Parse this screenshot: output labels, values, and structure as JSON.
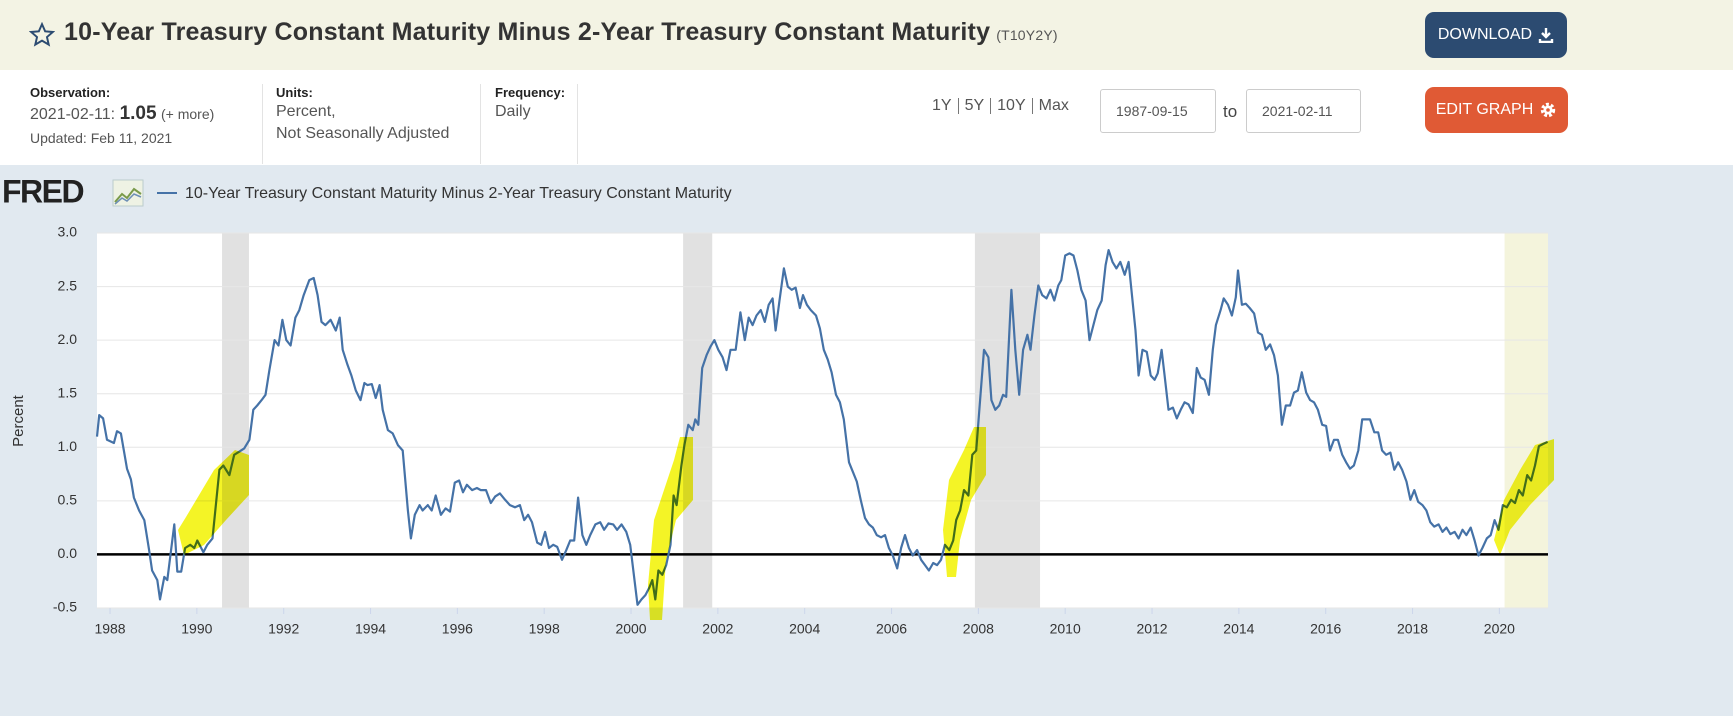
{
  "header": {
    "title": "10-Year Treasury Constant Maturity Minus 2-Year Treasury Constant Maturity",
    "series_id": "(T10Y2Y)",
    "download": "DOWNLOAD"
  },
  "info": {
    "observation": {
      "label": "Observation:",
      "date": "2021-02-11:",
      "value": "1.05",
      "more": "(+ more)",
      "updated": "Updated: Feb 11, 2021"
    },
    "units": {
      "label": "Units:",
      "lines": [
        "Percent,",
        "Not Seasonally Adjusted"
      ]
    },
    "frequency": {
      "label": "Frequency:",
      "value": "Daily"
    }
  },
  "controls": {
    "ranges": [
      "1Y",
      "5Y",
      "10Y",
      "Max"
    ],
    "start": "1987-09-15",
    "to": "to",
    "end": "2021-02-11",
    "edit": "EDIT GRAPH"
  },
  "logo": "FRED",
  "chart_data": {
    "type": "line",
    "ylabel": "Percent",
    "grid": true,
    "xlim": [
      1987.7,
      2021.12
    ],
    "ylim": [
      -0.5,
      3.0
    ],
    "xticks": [
      1988,
      1990,
      1992,
      1994,
      1996,
      1998,
      2000,
      2002,
      2004,
      2006,
      2008,
      2010,
      2012,
      2014,
      2016,
      2018,
      2020
    ],
    "yticks": [
      -0.5,
      {
        "value": 0,
        "label": "0.0"
      },
      0.5,
      {
        "value": 1,
        "label": "1.0"
      },
      1.5,
      {
        "value": 2,
        "label": "2.0"
      },
      2.5,
      {
        "value": 3,
        "label": "3.0"
      }
    ],
    "recessions": [
      {
        "start": 1990.58,
        "end": 1991.2,
        "color": "#e1e1e1"
      },
      {
        "start": 2001.2,
        "end": 2001.87,
        "color": "#e1e1e1"
      },
      {
        "start": 2007.92,
        "end": 2009.42,
        "color": "#e1e1e1"
      },
      {
        "start": 2020.12,
        "end": 2021.12,
        "color": "#f4f4dc"
      }
    ],
    "x": [
      1987.7,
      1987.75,
      1987.84,
      1987.93,
      1988.09,
      1988.16,
      1988.25,
      1988.39,
      1988.48,
      1988.55,
      1988.67,
      1988.79,
      1988.9,
      1988.97,
      1989.09,
      1989.15,
      1989.25,
      1989.32,
      1989.48,
      1989.55,
      1989.64,
      1989.73,
      1989.85,
      1989.94,
      1990.01,
      1990.15,
      1990.24,
      1990.36,
      1990.52,
      1990.61,
      1990.75,
      1990.86,
      1990.98,
      1991.09,
      1991.21,
      1991.3,
      1991.39,
      1991.49,
      1991.58,
      1991.67,
      1991.79,
      1991.88,
      1991.97,
      1992.06,
      1992.16,
      1992.27,
      1992.36,
      1992.46,
      1992.59,
      1992.69,
      1992.78,
      1992.87,
      1992.96,
      1993.08,
      1993.2,
      1993.29,
      1993.36,
      1993.47,
      1993.56,
      1993.66,
      1993.77,
      1993.86,
      1993.93,
      1994.03,
      1994.12,
      1994.21,
      1994.28,
      1994.4,
      1994.51,
      1994.63,
      1994.74,
      1994.86,
      1994.93,
      1995.02,
      1995.13,
      1995.2,
      1995.32,
      1995.41,
      1995.5,
      1995.62,
      1995.73,
      1995.83,
      1995.94,
      1996.04,
      1996.13,
      1996.22,
      1996.34,
      1996.45,
      1996.54,
      1996.66,
      1996.77,
      1996.87,
      1996.98,
      1997.1,
      1997.21,
      1997.33,
      1997.44,
      1997.54,
      1997.63,
      1997.72,
      1997.84,
      1997.93,
      1998.02,
      1998.11,
      1998.21,
      1998.3,
      1998.41,
      1998.51,
      1998.6,
      1998.69,
      1998.78,
      1998.88,
      1998.97,
      1999.06,
      1999.18,
      1999.29,
      1999.38,
      1999.48,
      1999.59,
      1999.68,
      1999.78,
      1999.89,
      1999.98,
      2000.08,
      2000.15,
      2000.24,
      2000.33,
      2000.42,
      2000.49,
      2000.56,
      2000.63,
      2000.72,
      2000.81,
      2000.91,
      2000.98,
      2001.05,
      2001.16,
      2001.23,
      2001.32,
      2001.42,
      2001.48,
      2001.55,
      2001.64,
      2001.74,
      2001.83,
      2001.92,
      2002.01,
      2002.11,
      2002.2,
      2002.29,
      2002.41,
      2002.52,
      2002.62,
      2002.71,
      2002.8,
      2002.89,
      2002.99,
      2003.08,
      2003.17,
      2003.26,
      2003.33,
      2003.42,
      2003.52,
      2003.61,
      2003.7,
      2003.79,
      2003.89,
      2003.96,
      2004.05,
      2004.14,
      2004.26,
      2004.35,
      2004.44,
      2004.53,
      2004.62,
      2004.72,
      2004.81,
      2004.9,
      2005.02,
      2005.11,
      2005.2,
      2005.29,
      2005.39,
      2005.48,
      2005.57,
      2005.66,
      2005.76,
      2005.85,
      2005.94,
      2006.03,
      2006.13,
      2006.22,
      2006.31,
      2006.4,
      2006.49,
      2006.59,
      2006.68,
      2006.77,
      2006.86,
      2006.96,
      2007.05,
      2007.14,
      2007.23,
      2007.33,
      2007.42,
      2007.49,
      2007.58,
      2007.67,
      2007.77,
      2007.86,
      2007.95,
      2008.04,
      2008.13,
      2008.23,
      2008.3,
      2008.39,
      2008.48,
      2008.57,
      2008.64,
      2008.76,
      2008.85,
      2008.94,
      2009.03,
      2009.13,
      2009.2,
      2009.29,
      2009.38,
      2009.47,
      2009.57,
      2009.66,
      2009.75,
      2009.84,
      2009.91,
      2010.0,
      2010.1,
      2010.19,
      2010.28,
      2010.37,
      2010.47,
      2010.56,
      2010.65,
      2010.74,
      2010.84,
      2010.93,
      2011.0,
      2011.09,
      2011.18,
      2011.27,
      2011.37,
      2011.46,
      2011.55,
      2011.62,
      2011.69,
      2011.78,
      2011.88,
      2011.97,
      2012.06,
      2012.13,
      2012.22,
      2012.29,
      2012.38,
      2012.48,
      2012.57,
      2012.66,
      2012.75,
      2012.84,
      2012.94,
      2013.03,
      2013.12,
      2013.21,
      2013.31,
      2013.4,
      2013.47,
      2013.58,
      2013.65,
      2013.75,
      2013.84,
      2013.93,
      2013.98,
      2014.07,
      2014.16,
      2014.25,
      2014.35,
      2014.44,
      2014.53,
      2014.62,
      2014.72,
      2014.81,
      2014.9,
      2014.99,
      2015.08,
      2015.18,
      2015.27,
      2015.36,
      2015.45,
      2015.55,
      2015.64,
      2015.73,
      2015.82,
      2015.92,
      2016.01,
      2016.1,
      2016.19,
      2016.28,
      2016.38,
      2016.47,
      2016.56,
      2016.65,
      2016.75,
      2016.84,
      2016.93,
      2017.02,
      2017.12,
      2017.21,
      2017.3,
      2017.39,
      2017.49,
      2017.58,
      2017.67,
      2017.76,
      2017.86,
      2017.95,
      2018.04,
      2018.13,
      2018.23,
      2018.32,
      2018.41,
      2018.5,
      2018.6,
      2018.69,
      2018.78,
      2018.87,
      2018.97,
      2019.06,
      2019.15,
      2019.24,
      2019.34,
      2019.43,
      2019.52,
      2019.61,
      2019.71,
      2019.8,
      2019.89,
      2019.98,
      2020.08,
      2020.17,
      2020.27,
      2020.36,
      2020.45,
      2020.54,
      2020.64,
      2020.73,
      2020.82,
      2020.91,
      2021.0,
      2021.11
    ],
    "series": [
      {
        "name": "10-Year Treasury Constant Maturity Minus 2-Year Treasury Constant Maturity",
        "color": "#4572a7",
        "values": [
          1.1,
          1.3,
          1.27,
          1.07,
          1.04,
          1.15,
          1.13,
          0.8,
          0.7,
          0.53,
          0.41,
          0.32,
          0.04,
          -0.15,
          -0.24,
          -0.42,
          -0.21,
          -0.24,
          0.28,
          -0.16,
          -0.16,
          0.06,
          0.09,
          0.06,
          0.13,
          0.02,
          0.09,
          0.15,
          0.79,
          0.83,
          0.74,
          0.93,
          0.96,
          0.99,
          1.07,
          1.35,
          1.39,
          1.44,
          1.49,
          1.72,
          2.0,
          1.95,
          2.19,
          2.0,
          1.95,
          2.21,
          2.28,
          2.42,
          2.56,
          2.58,
          2.42,
          2.17,
          2.14,
          2.19,
          2.09,
          2.21,
          1.91,
          1.77,
          1.67,
          1.53,
          1.44,
          1.6,
          1.58,
          1.59,
          1.46,
          1.58,
          1.35,
          1.16,
          1.13,
          1.02,
          0.97,
          0.41,
          0.15,
          0.37,
          0.46,
          0.41,
          0.46,
          0.41,
          0.55,
          0.37,
          0.43,
          0.4,
          0.67,
          0.69,
          0.58,
          0.65,
          0.6,
          0.62,
          0.6,
          0.6,
          0.48,
          0.54,
          0.57,
          0.51,
          0.46,
          0.44,
          0.46,
          0.32,
          0.37,
          0.3,
          0.11,
          0.09,
          0.21,
          0.06,
          0.09,
          0.07,
          -0.05,
          0.04,
          0.13,
          0.13,
          0.53,
          0.18,
          0.09,
          0.18,
          0.28,
          0.3,
          0.23,
          0.29,
          0.28,
          0.23,
          0.28,
          0.21,
          0.09,
          -0.24,
          -0.47,
          -0.42,
          -0.38,
          -0.31,
          -0.24,
          -0.42,
          -0.15,
          -0.19,
          -0.1,
          0.09,
          0.55,
          0.46,
          0.83,
          1.02,
          1.21,
          1.16,
          1.26,
          1.21,
          1.74,
          1.86,
          1.94,
          2.0,
          1.91,
          1.84,
          1.72,
          1.91,
          1.91,
          2.26,
          2.0,
          2.21,
          2.14,
          2.23,
          2.28,
          2.17,
          2.33,
          2.39,
          2.09,
          2.37,
          2.67,
          2.5,
          2.47,
          2.49,
          2.3,
          2.42,
          2.33,
          2.28,
          2.23,
          2.11,
          1.91,
          1.82,
          1.7,
          1.49,
          1.42,
          1.26,
          0.86,
          0.77,
          0.68,
          0.51,
          0.34,
          0.28,
          0.25,
          0.18,
          0.16,
          0.18,
          0.06,
          -0.01,
          -0.13,
          0.06,
          0.18,
          0.06,
          -0.01,
          0.04,
          -0.05,
          -0.1,
          -0.15,
          -0.08,
          -0.1,
          -0.05,
          0.09,
          0.04,
          0.13,
          0.32,
          0.41,
          0.6,
          0.55,
          0.93,
          0.97,
          1.44,
          1.91,
          1.84,
          1.44,
          1.35,
          1.39,
          1.49,
          1.47,
          2.47,
          1.91,
          1.49,
          1.91,
          2.05,
          1.91,
          2.23,
          2.51,
          2.42,
          2.39,
          2.47,
          2.37,
          2.51,
          2.56,
          2.79,
          2.81,
          2.79,
          2.65,
          2.47,
          2.37,
          2.0,
          2.14,
          2.28,
          2.37,
          2.7,
          2.84,
          2.73,
          2.67,
          2.73,
          2.61,
          2.73,
          2.37,
          2.09,
          1.67,
          1.91,
          1.89,
          1.67,
          1.63,
          1.69,
          1.91,
          1.67,
          1.35,
          1.37,
          1.27,
          1.35,
          1.42,
          1.4,
          1.32,
          1.74,
          1.65,
          1.63,
          1.49,
          1.91,
          2.14,
          2.28,
          2.39,
          2.33,
          2.23,
          2.4,
          2.65,
          2.33,
          2.34,
          2.3,
          2.25,
          2.07,
          2.05,
          1.91,
          1.96,
          1.86,
          1.67,
          1.21,
          1.39,
          1.39,
          1.51,
          1.53,
          1.7,
          1.51,
          1.44,
          1.42,
          1.35,
          1.21,
          1.2,
          0.97,
          1.07,
          1.07,
          0.93,
          0.86,
          0.8,
          0.83,
          0.97,
          1.26,
          1.26,
          1.26,
          1.14,
          1.14,
          0.97,
          0.93,
          0.95,
          0.79,
          0.86,
          0.79,
          0.68,
          0.51,
          0.6,
          0.49,
          0.46,
          0.41,
          0.3,
          0.26,
          0.28,
          0.21,
          0.25,
          0.19,
          0.21,
          0.15,
          0.23,
          0.18,
          0.25,
          0.13,
          -0.01,
          0.06,
          0.15,
          0.18,
          0.32,
          0.23,
          0.46,
          0.44,
          0.51,
          0.48,
          0.6,
          0.55,
          0.74,
          0.69,
          0.83,
          1.01,
          1.03,
          1.05
        ]
      }
    ]
  }
}
